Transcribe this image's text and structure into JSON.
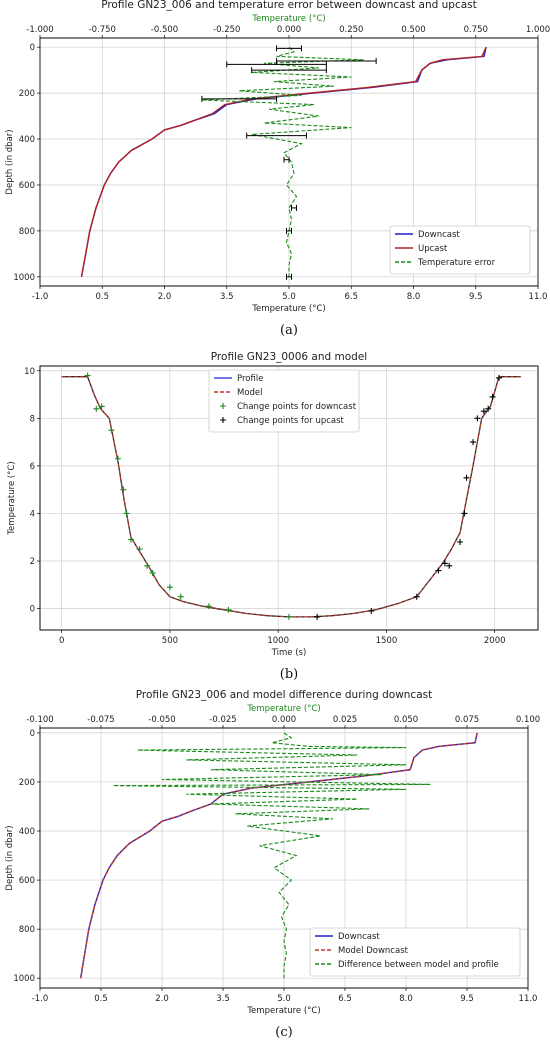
{
  "panels": [
    {
      "id": "a",
      "title": "Profile GN23_006 and temperature error between downcast and upcast",
      "caption": "(a)",
      "top_axis_label": "Temperature (°C)",
      "bottom_axis_label": "Temperature (°C)",
      "y_axis_label": "Depth (in dbar)",
      "legend": [
        "Downcast",
        "Upcast",
        "Temperature error"
      ]
    },
    {
      "id": "b",
      "title": "Profile GN23_0006 and model",
      "caption": "(b)",
      "x_axis_label": "Time (s)",
      "y_axis_label": "Temperature (°C)",
      "legend": [
        "Profile",
        "Model",
        "Change points for downcast",
        "Change points for upcast"
      ]
    },
    {
      "id": "c",
      "title": "Profile GN23_006 and model difference during downcast",
      "caption": "(c)",
      "top_axis_label": "Temperature (°C)",
      "bottom_axis_label": "Temperature (°C)",
      "y_axis_label": "Depth (in dbar)",
      "legend": [
        "Downcast",
        "Model Downcast",
        "Difference between model and profile"
      ]
    }
  ],
  "colors": {
    "downcast": "#1f1fcc",
    "upcast": "#b22222",
    "model": "#c0392b",
    "error": "#1a8a1a",
    "profile": "#4a4ae6"
  },
  "chart_data": [
    {
      "type": "line",
      "title": "Profile GN23_006 and temperature error between downcast and upcast",
      "xlabel": "Temperature (°C)",
      "x_top_label": "Temperature (°C)",
      "ylabel": "Depth (in dbar)",
      "xlim": [
        -1.0,
        11.0
      ],
      "x_ticks": [
        "-1.0",
        "0.5",
        "2.0",
        "3.5",
        "5.0",
        "6.5",
        "8.0",
        "9.5",
        "11.0"
      ],
      "x_top_lim": [
        -1.0,
        1.0
      ],
      "x_top_ticks": [
        "-1.000",
        "-0.750",
        "-0.500",
        "-0.250",
        "0.000",
        "0.250",
        "0.500",
        "0.750",
        "1.000"
      ],
      "ylim": [
        1040,
        -40
      ],
      "y_ticks": [
        "0",
        "200",
        "400",
        "600",
        "800",
        "1000"
      ],
      "grid": true,
      "legend_position": "bottom-right",
      "series": [
        {
          "name": "Downcast",
          "axis": "bottom",
          "y": [
            0,
            40,
            55,
            70,
            100,
            150,
            175,
            200,
            225,
            250,
            290,
            320,
            340,
            360,
            400,
            450,
            500,
            550,
            600,
            700,
            800,
            900,
            1000
          ],
          "x": [
            9.75,
            9.7,
            8.8,
            8.4,
            8.2,
            8.1,
            7.0,
            5.6,
            4.2,
            3.5,
            3.2,
            2.7,
            2.4,
            2.0,
            1.7,
            1.2,
            0.9,
            0.7,
            0.55,
            0.35,
            0.2,
            0.1,
            0.0
          ]
        },
        {
          "name": "Upcast",
          "axis": "bottom",
          "y": [
            0,
            40,
            55,
            70,
            100,
            150,
            175,
            200,
            225,
            250,
            290,
            320,
            340,
            360,
            400,
            450,
            500,
            550,
            600,
            700,
            800,
            900,
            1000
          ],
          "x": [
            9.75,
            9.65,
            8.7,
            8.4,
            8.2,
            8.05,
            6.9,
            5.5,
            4.1,
            3.45,
            3.15,
            2.7,
            2.4,
            2.0,
            1.7,
            1.2,
            0.9,
            0.7,
            0.55,
            0.35,
            0.2,
            0.1,
            0.0
          ]
        },
        {
          "name": "Temperature error",
          "axis": "top",
          "y": [
            0,
            20,
            40,
            55,
            70,
            90,
            110,
            130,
            150,
            170,
            190,
            210,
            230,
            250,
            270,
            300,
            330,
            350,
            380,
            420,
            460,
            500,
            550,
            600,
            650,
            700,
            750,
            800,
            850,
            900,
            950,
            1000
          ],
          "x": [
            0.0,
            0.02,
            -0.05,
            0.3,
            -0.1,
            0.12,
            -0.15,
            0.25,
            -0.06,
            0.18,
            -0.2,
            0.05,
            -0.35,
            0.1,
            -0.08,
            0.12,
            -0.1,
            0.25,
            -0.15,
            0.05,
            -0.02,
            0.01,
            0.02,
            -0.01,
            0.03,
            0.0,
            0.01,
            0.0,
            -0.01,
            0.01,
            0.0,
            0.0
          ],
          "error_bars": [
            {
              "y": 5,
              "x": 0.0,
              "err": 0.05
            },
            {
              "y": 60,
              "x": 0.15,
              "err": 0.2
            },
            {
              "y": 75,
              "x": -0.05,
              "err": 0.2
            },
            {
              "y": 100,
              "x": 0.0,
              "err": 0.15
            },
            {
              "y": 225,
              "x": -0.2,
              "err": 0.15
            },
            {
              "y": 385,
              "x": -0.05,
              "err": 0.12
            },
            {
              "y": 490,
              "x": -0.01,
              "err": 0.01
            },
            {
              "y": 700,
              "x": 0.02,
              "err": 0.01
            },
            {
              "y": 800,
              "x": 0.0,
              "err": 0.01
            },
            {
              "y": 1000,
              "x": 0.0,
              "err": 0.01
            }
          ]
        }
      ]
    },
    {
      "type": "line",
      "title": "Profile GN23_0006 and model",
      "xlabel": "Time (s)",
      "ylabel": "Temperature (°C)",
      "xlim": [
        -100,
        2200
      ],
      "x_ticks": [
        "0",
        "500",
        "1000",
        "1500",
        "2000"
      ],
      "ylim": [
        -0.9,
        10.2
      ],
      "y_ticks": [
        "0",
        "2",
        "4",
        "6",
        "8",
        "10"
      ],
      "grid": true,
      "legend_position": "top-center",
      "series": [
        {
          "name": "Profile",
          "x": [
            0,
            120,
            150,
            180,
            220,
            260,
            290,
            320,
            360,
            400,
            450,
            500,
            560,
            650,
            750,
            850,
            950,
            1050,
            1150,
            1250,
            1350,
            1450,
            1550,
            1640,
            1700,
            1760,
            1800,
            1840,
            1870,
            1900,
            1940,
            1980,
            2020,
            2120
          ],
          "y": [
            9.75,
            9.75,
            9.0,
            8.4,
            8.0,
            6.2,
            4.5,
            3.0,
            2.4,
            1.8,
            1.0,
            0.5,
            0.3,
            0.1,
            -0.05,
            -0.2,
            -0.3,
            -0.35,
            -0.35,
            -0.3,
            -0.2,
            -0.05,
            0.2,
            0.5,
            1.2,
            1.9,
            2.5,
            3.2,
            4.6,
            6.0,
            8.0,
            8.5,
            9.75,
            9.75
          ]
        },
        {
          "name": "Model",
          "x": [
            0,
            120,
            150,
            180,
            220,
            260,
            290,
            320,
            360,
            400,
            450,
            500,
            560,
            650,
            750,
            850,
            950,
            1050,
            1150,
            1250,
            1350,
            1450,
            1550,
            1640,
            1700,
            1760,
            1800,
            1840,
            1870,
            1900,
            1940,
            1980,
            2020,
            2120
          ],
          "y": [
            9.75,
            9.75,
            9.0,
            8.4,
            8.0,
            6.2,
            4.5,
            3.0,
            2.4,
            1.8,
            1.0,
            0.5,
            0.3,
            0.1,
            -0.05,
            -0.2,
            -0.3,
            -0.35,
            -0.35,
            -0.3,
            -0.2,
            -0.05,
            0.2,
            0.5,
            1.2,
            1.9,
            2.5,
            3.2,
            4.6,
            6.0,
            8.0,
            8.5,
            9.75,
            9.75
          ]
        },
        {
          "name": "Change points for downcast",
          "x": [
            120,
            160,
            185,
            230,
            260,
            285,
            300,
            320,
            360,
            395,
            420,
            500,
            550,
            680,
            770,
            1050
          ],
          "y": [
            9.8,
            8.4,
            8.5,
            7.5,
            6.3,
            5.0,
            4.0,
            2.9,
            2.5,
            1.8,
            1.5,
            0.9,
            0.5,
            0.1,
            -0.05,
            -0.35
          ]
        },
        {
          "name": "Change points for upcast",
          "x": [
            1180,
            1430,
            1640,
            1740,
            1770,
            1790,
            1840,
            1860,
            1870,
            1900,
            1920,
            1950,
            1970,
            1990,
            2020
          ],
          "y": [
            -0.35,
            -0.1,
            0.5,
            1.6,
            1.9,
            1.8,
            2.8,
            4.0,
            5.5,
            7.0,
            8.0,
            8.3,
            8.4,
            8.9,
            9.7
          ]
        }
      ]
    },
    {
      "type": "line",
      "title": "Profile GN23_006 and model difference during downcast",
      "xlabel": "Temperature (°C)",
      "x_top_label": "Temperature (°C)",
      "ylabel": "Depth (in dbar)",
      "xlim": [
        -1.0,
        11.0
      ],
      "x_ticks": [
        "-1.0",
        "0.5",
        "2.0",
        "3.5",
        "5.0",
        "6.5",
        "8.0",
        "9.5",
        "11.0"
      ],
      "x_top_lim": [
        -0.1,
        0.1
      ],
      "x_top_ticks": [
        "-0.100",
        "-0.075",
        "-0.050",
        "-0.025",
        "0.000",
        "0.025",
        "0.050",
        "0.075",
        "0.100"
      ],
      "ylim": [
        1040,
        -20
      ],
      "y_ticks": [
        "0",
        "200",
        "400",
        "600",
        "800",
        "1000"
      ],
      "grid": true,
      "legend_position": "bottom-right",
      "series": [
        {
          "name": "Downcast",
          "axis": "bottom",
          "y": [
            0,
            40,
            55,
            70,
            100,
            150,
            175,
            200,
            225,
            250,
            290,
            320,
            340,
            360,
            400,
            450,
            500,
            550,
            600,
            700,
            800,
            900,
            1000
          ],
          "x": [
            9.75,
            9.7,
            8.8,
            8.4,
            8.2,
            8.1,
            7.0,
            5.6,
            4.2,
            3.5,
            3.2,
            2.7,
            2.4,
            2.0,
            1.7,
            1.2,
            0.9,
            0.7,
            0.55,
            0.35,
            0.2,
            0.1,
            0.0
          ]
        },
        {
          "name": "Model Downcast",
          "axis": "bottom",
          "y": [
            0,
            40,
            55,
            70,
            100,
            150,
            175,
            200,
            225,
            250,
            290,
            320,
            340,
            360,
            400,
            450,
            500,
            550,
            600,
            700,
            800,
            900,
            1000
          ],
          "x": [
            9.75,
            9.7,
            8.8,
            8.4,
            8.2,
            8.1,
            7.0,
            5.6,
            4.2,
            3.5,
            3.2,
            2.7,
            2.4,
            2.0,
            1.7,
            1.2,
            0.9,
            0.7,
            0.55,
            0.35,
            0.2,
            0.1,
            0.0
          ]
        },
        {
          "name": "Difference between model and profile",
          "axis": "top",
          "y": [
            0,
            20,
            40,
            55,
            60,
            70,
            90,
            110,
            130,
            150,
            170,
            190,
            210,
            215,
            230,
            250,
            270,
            290,
            310,
            330,
            350,
            380,
            420,
            460,
            500,
            550,
            600,
            650,
            700,
            750,
            800,
            850,
            900,
            950,
            1000
          ],
          "x": [
            0.0,
            0.003,
            -0.005,
            0.01,
            0.05,
            -0.06,
            0.03,
            -0.04,
            0.05,
            -0.03,
            0.04,
            -0.05,
            0.06,
            -0.07,
            0.05,
            -0.04,
            0.03,
            -0.03,
            0.035,
            -0.02,
            0.02,
            -0.015,
            0.015,
            -0.01,
            0.005,
            -0.004,
            0.003,
            -0.002,
            0.002,
            -0.001,
            0.001,
            0.0,
            0.001,
            0.0,
            0.0
          ]
        }
      ]
    }
  ]
}
